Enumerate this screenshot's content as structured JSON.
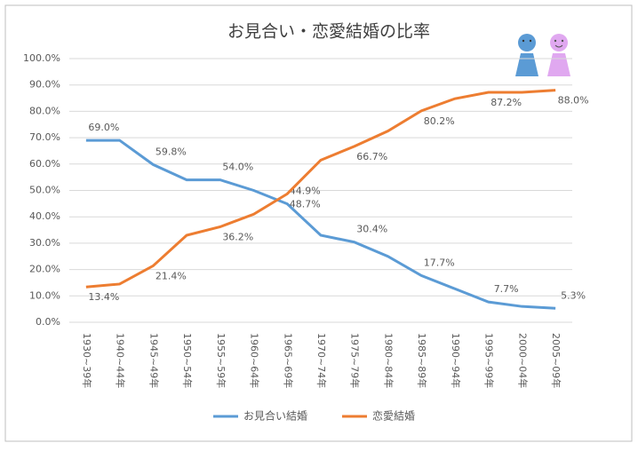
{
  "chart_data": {
    "type": "line",
    "title": "お見合い・恋愛結婚の比率",
    "categories": [
      "1930~39年",
      "1940~44年",
      "1945~49年",
      "1950~54年",
      "1955~59年",
      "1960~64年",
      "1965~69年",
      "1970~74年",
      "1975~79年",
      "1980~84年",
      "1985~89年",
      "1990~94年",
      "1995~99年",
      "2000~04年",
      "2005~09年"
    ],
    "series": [
      {
        "name": "お見合い結婚",
        "color": "#5b9bd5",
        "values": [
          69.0,
          69.0,
          59.8,
          54,
          54.0,
          50,
          44.9,
          33,
          30.4,
          25,
          17.7,
          12.7,
          7.7,
          6,
          5.3
        ],
        "value_labels": [
          "69.0%",
          null,
          "59.8%",
          null,
          "54.0%",
          null,
          "44.9%",
          null,
          "30.4%",
          null,
          "17.7%",
          null,
          "7.7%",
          null,
          "5.3%"
        ]
      },
      {
        "name": "恋愛結婚",
        "color": "#ed7d31",
        "values": [
          13.4,
          14.5,
          21.4,
          33,
          36.2,
          41,
          48.7,
          61.5,
          66.7,
          72.5,
          80.2,
          84.8,
          87.2,
          87.2,
          88.0
        ],
        "value_labels": [
          "13.4%",
          null,
          "21.4%",
          null,
          "36.2%",
          null,
          "48.7%",
          null,
          "66.7%",
          null,
          "80.2%",
          null,
          "87.2%",
          null,
          "88.0%"
        ]
      }
    ],
    "ylim": [
      0,
      100
    ],
    "yticks": [
      {
        "value": 0,
        "label": "0.0%"
      },
      {
        "value": 10,
        "label": "10.0%"
      },
      {
        "value": 20,
        "label": "20.0%"
      },
      {
        "value": 30,
        "label": "30.0%"
      },
      {
        "value": 40,
        "label": "40.0%"
      },
      {
        "value": 50,
        "label": "50.0%"
      },
      {
        "value": 60,
        "label": "60.0%"
      },
      {
        "value": 70,
        "label": "70.0%"
      },
      {
        "value": 80,
        "label": "80.0%"
      },
      {
        "value": 90,
        "label": "90.0%"
      },
      {
        "value": 100,
        "label": "100.0%"
      }
    ],
    "grid": true,
    "legend": "bottom"
  }
}
